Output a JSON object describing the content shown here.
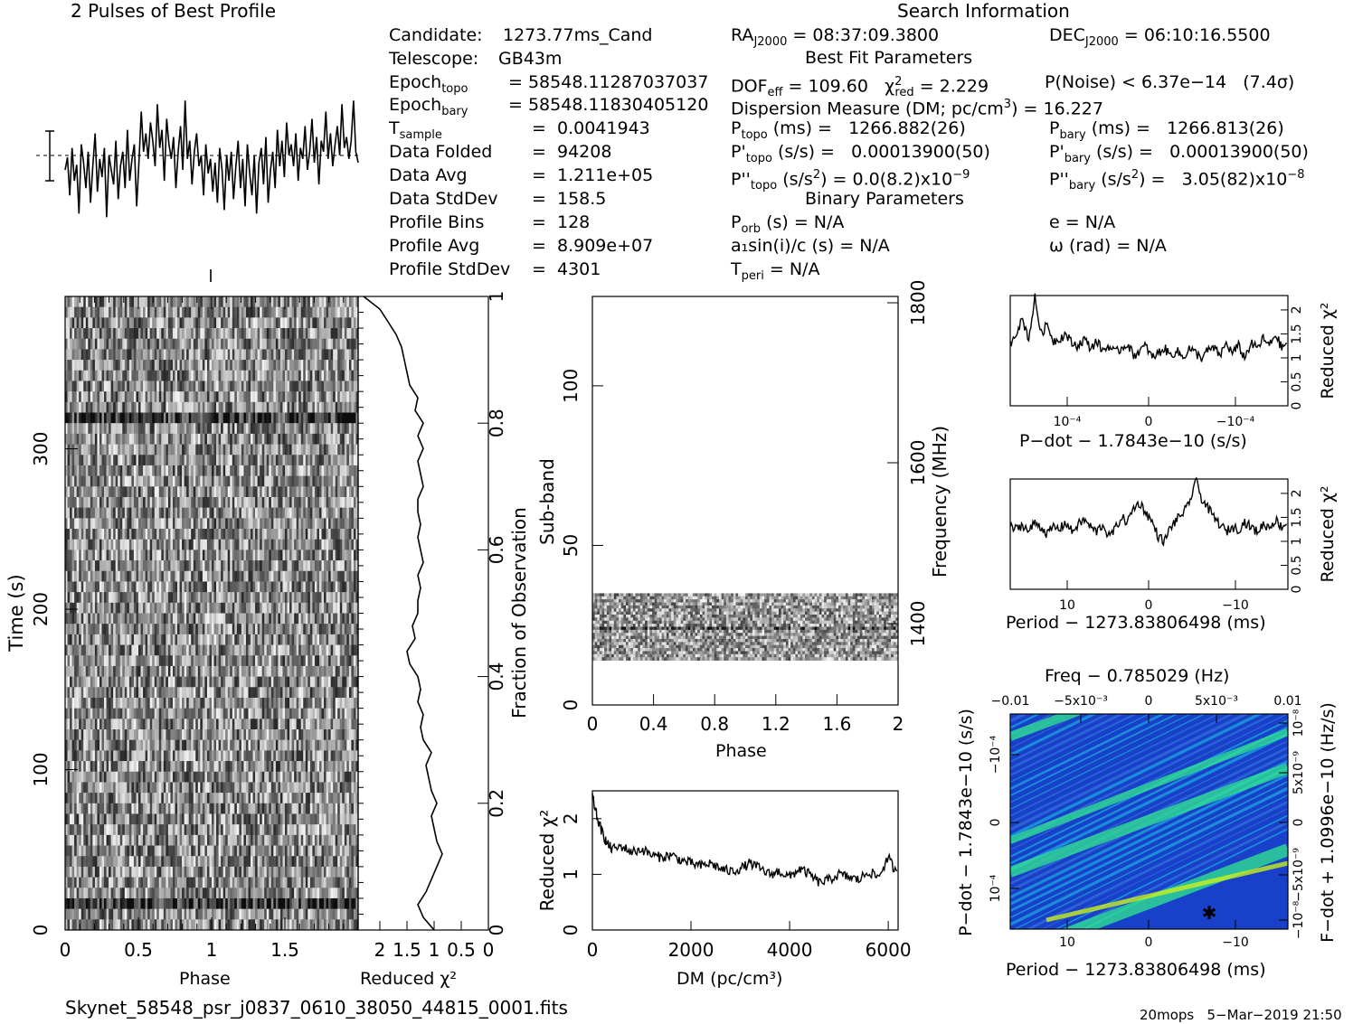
{
  "header": {
    "profile_title": "2 Pulses of Best Profile",
    "search_title": "Search Information"
  },
  "candidate_info": [
    {
      "label": "Candidate:",
      "value": "1273.77ms_Cand"
    },
    {
      "label": "Telescope:",
      "value": "GB43m"
    },
    {
      "label": "Epoch_topo",
      "value": "= 58548.11287037037"
    },
    {
      "label": "Epoch_bary",
      "value": "= 58548.11830405120"
    },
    {
      "label": "T_sample",
      "value": "=  0.0041943"
    },
    {
      "label": "Data Folded",
      "value": "=  94208"
    },
    {
      "label": "Data Avg",
      "value": "=  1.211e+05"
    },
    {
      "label": "Data StdDev",
      "value": "=  158.5"
    },
    {
      "label": "Profile Bins",
      "value": "=  128"
    },
    {
      "label": "Profile Avg",
      "value": "=  8.909e+07"
    },
    {
      "label": "Profile StdDev",
      "value": "=  4301"
    }
  ],
  "search_info": {
    "ra": "RA_J2000 = 08:37:09.3800",
    "dec": "DEC_J2000 = 06:10:16.5500",
    "best_fit_header": "Best Fit Parameters",
    "dof": "DOF_eff = 109.60",
    "chi2": "χ²_red = 2.229",
    "p_noise": "P(Noise) < 6.37e−14   (7.4σ)",
    "dm": "Dispersion Measure (DM; pc/cm³) = 16.227",
    "p_topo": "P_topo (ms) =   1266.882(26)",
    "p_bary": "P_bary (ms) =   1266.813(26)",
    "pd_topo": "P'_topo (s/s) =   0.00013900(50)",
    "pd_bary": "P'_bary (s/s) =   0.00013900(50)",
    "pdd_topo": "P''_topo (s/s²) = 0.0(8.2)x10⁻⁹",
    "pdd_bary": "P''_bary (s/s²) =   3.05(82)x10⁻⁸",
    "binary_header": "Binary Parameters",
    "p_orb": "P_orb (s) = N/A",
    "e": "e = N/A",
    "a1": "a₁sin(i)/c (s) = N/A",
    "omega": "ω (rad) = N/A",
    "t_peri": "T_peri = N/A"
  },
  "footer": {
    "filename": "Skynet_58548_psr_j0837_0610_38050_44815_0001.fits",
    "stamp": "20mops   5−Mar−2019 21:50"
  },
  "chart_data": [
    {
      "id": "profile",
      "type": "line",
      "title": "2 Pulses of Best Profile",
      "xlim": [
        0,
        2
      ],
      "y": [
        0.05,
        0.22,
        -0.3,
        0.35,
        -0.1,
        0.12,
        -0.55,
        0.4,
        0.15,
        -0.2,
        0.3,
        -0.4,
        0.1,
        0.55,
        -0.25,
        0.2,
        -0.05,
        0.35,
        -0.6,
        0.25,
        0.05,
        -0.15,
        0.45,
        -0.35,
        0.1,
        0.3,
        -0.2,
        0.6,
        -0.1,
        0.2,
        0.4,
        -0.45,
        0.15,
        0.85,
        0.3,
        0.55,
        0.2,
        0.7,
        0.45,
        0.1,
        0.95,
        0.35,
        0.6,
        -0.1,
        0.75,
        0.4,
        0.2,
        0.5,
        -0.2,
        0.3,
        0.65,
        0.05,
        1.0,
        0.2,
        0.45,
        -0.15,
        0.3,
        0.55,
        0.1,
        0.25,
        -0.3,
        0.4,
        0.0,
        0.2,
        -0.25,
        0.15,
        -0.4,
        0.35,
        0.05,
        -0.5,
        0.25,
        -0.1,
        0.3,
        -0.35,
        0.1,
        0.45,
        -0.2,
        0.2,
        -0.45,
        0.4,
        0.0,
        -0.3,
        0.25,
        -0.55,
        0.15,
        0.35,
        -0.15,
        0.5,
        -0.4,
        0.05,
        0.3,
        -0.2,
        0.6,
        0.1,
        0.45,
        -0.05,
        0.7,
        0.25,
        0.4,
        0.1,
        0.55,
        -0.1,
        0.35,
        0.2,
        0.65,
        0.05,
        0.3,
        0.75,
        0.15,
        0.5,
        -0.15,
        0.45,
        0.3,
        0.85,
        0.2,
        0.55,
        0.1,
        0.4,
        0.65,
        0.25,
        0.95,
        0.35,
        0.5,
        0.2,
        0.45,
        1.0,
        0.3,
        0.15
      ]
    },
    {
      "id": "time-phase",
      "type": "heatmap",
      "xlabel": "Phase",
      "ylabel": "Time (s)",
      "xlim": [
        0,
        2
      ],
      "ylim": [
        0,
        395
      ],
      "xticks": [
        "0",
        "0.5",
        "1",
        "1.5"
      ],
      "yticks": [
        "0",
        "100",
        "200",
        "300"
      ],
      "right_axis_label": "Fraction of Observation",
      "right_ticks": [
        "0",
        "0.2",
        "0.4",
        "0.6",
        "0.8",
        "1"
      ]
    },
    {
      "id": "time-chi2",
      "type": "line",
      "xlabel": "Reduced χ²",
      "xticks": [
        "2",
        "1.5",
        "1",
        "0.5",
        "0"
      ],
      "xlim": [
        2.4,
        0
      ],
      "y_fraction": [
        0,
        0.02,
        0.04,
        0.06,
        0.08,
        0.1,
        0.12,
        0.14,
        0.16,
        0.18,
        0.2,
        0.22,
        0.24,
        0.26,
        0.28,
        0.3,
        0.32,
        0.34,
        0.36,
        0.38,
        0.4,
        0.42,
        0.44,
        0.46,
        0.48,
        0.5,
        0.52,
        0.54,
        0.56,
        0.58,
        0.6,
        0.62,
        0.64,
        0.66,
        0.68,
        0.7,
        0.72,
        0.74,
        0.76,
        0.78,
        0.8,
        0.82,
        0.84,
        0.86,
        0.88,
        0.9,
        0.92,
        0.94,
        0.96,
        0.98,
        1.0
      ],
      "values": [
        1.0,
        1.2,
        1.3,
        1.15,
        1.05,
        0.95,
        0.85,
        0.95,
        1.0,
        1.05,
        0.95,
        1.05,
        1.1,
        1.15,
        1.05,
        1.2,
        1.25,
        1.2,
        1.3,
        1.25,
        1.3,
        1.45,
        1.5,
        1.35,
        1.4,
        1.3,
        1.3,
        1.25,
        1.3,
        1.2,
        1.25,
        1.3,
        1.25,
        1.3,
        1.3,
        1.2,
        1.25,
        1.3,
        1.2,
        1.3,
        1.2,
        1.35,
        1.3,
        1.45,
        1.5,
        1.55,
        1.6,
        1.7,
        1.85,
        2.0,
        2.3
      ]
    },
    {
      "id": "subband-phase",
      "type": "heatmap",
      "xlabel": "Phase",
      "ylabel": "Sub-band",
      "xlim": [
        0,
        2
      ],
      "ylim": [
        0,
        128
      ],
      "xticks": [
        "0",
        "0.4",
        "0.8",
        "1.2",
        "1.6",
        "2"
      ],
      "yticks": [
        "0",
        "50",
        "100"
      ],
      "right_axis_label": "Frequency (MHz)",
      "right_ticks": [
        "1400",
        "1600",
        "1800"
      ],
      "occupied_subbands": [
        14,
        35
      ]
    },
    {
      "id": "dm-chi2",
      "type": "line",
      "xlabel": "DM (pc/cm³)",
      "ylabel": "Reduced χ²",
      "xlim": [
        0,
        6200
      ],
      "ylim": [
        0,
        2.5
      ],
      "xticks": [
        "0",
        "2000",
        "4000",
        "6000"
      ],
      "yticks": [
        "0",
        "1",
        "2"
      ],
      "x": [
        0,
        100,
        200,
        300,
        400,
        600,
        800,
        1000,
        1200,
        1400,
        1600,
        1800,
        2000,
        2200,
        2400,
        2600,
        2800,
        3000,
        3200,
        3400,
        3600,
        3800,
        4000,
        4200,
        4400,
        4600,
        4800,
        5000,
        5200,
        5400,
        5600,
        5800,
        6000,
        6200
      ],
      "values": [
        2.4,
        2.0,
        1.75,
        1.55,
        1.45,
        1.5,
        1.4,
        1.45,
        1.35,
        1.3,
        1.35,
        1.25,
        1.2,
        1.15,
        1.2,
        1.1,
        1.05,
        1.1,
        1.2,
        1.1,
        1.0,
        1.05,
        0.95,
        1.1,
        1.0,
        0.85,
        0.9,
        1.0,
        0.95,
        0.9,
        1.05,
        0.95,
        1.3,
        0.95
      ]
    },
    {
      "id": "pdot-chi2",
      "type": "line",
      "xlabel": "P−dot − 1.7843e−10 (s/s)",
      "ylabel": "Reduced χ²",
      "xticks": [
        "10⁻⁴",
        "0",
        "−10⁻⁴"
      ],
      "yticks": [
        "0",
        "0.5",
        "1",
        "1.5",
        "2"
      ],
      "ylim": [
        0,
        2.3
      ],
      "values": [
        1.3,
        1.55,
        1.8,
        1.4,
        2.25,
        1.5,
        1.7,
        1.35,
        1.4,
        1.5,
        1.3,
        1.25,
        1.4,
        1.2,
        1.35,
        1.15,
        1.25,
        1.1,
        1.2,
        1.3,
        1.05,
        1.15,
        1.25,
        1.0,
        1.1,
        1.2,
        1.05,
        1.15,
        1.0,
        1.2,
        1.1,
        1.0,
        1.15,
        1.2,
        1.05,
        1.3,
        1.1,
        1.25,
        1.0,
        1.3,
        1.2,
        1.4,
        1.25,
        1.5,
        1.2,
        1.35
      ]
    },
    {
      "id": "period-chi2",
      "type": "line",
      "xlabel": "Period − 1273.83806498 (ms)",
      "ylabel": "Reduced χ²",
      "xticks": [
        "10",
        "0",
        "−10"
      ],
      "yticks": [
        "0",
        "0.5",
        "1",
        "1.5",
        "2"
      ],
      "ylim": [
        0,
        2.3
      ],
      "values": [
        1.3,
        1.25,
        1.35,
        1.2,
        1.4,
        1.3,
        1.15,
        1.3,
        1.25,
        1.4,
        1.2,
        1.35,
        1.45,
        1.3,
        1.2,
        1.35,
        1.1,
        1.25,
        1.5,
        1.4,
        1.7,
        1.8,
        1.6,
        1.4,
        1.1,
        1.0,
        1.3,
        1.45,
        1.6,
        1.75,
        2.3,
        1.9,
        1.7,
        1.5,
        1.35,
        1.2,
        1.3,
        1.25,
        1.4,
        1.3,
        1.2,
        1.35,
        1.3,
        1.45,
        1.3,
        1.4
      ]
    },
    {
      "id": "p-pdot-plane",
      "type": "heatmap",
      "title": "Freq − 0.785029 (Hz)",
      "xlabel": "Period − 1273.83806498 (ms)",
      "ylabel": "P−dot − 1.7843e−10 (s/s)",
      "right_axis_label": "F−dot + 1.0996e−10 (Hz/s)",
      "xticks": [
        "10",
        "0",
        "−10"
      ],
      "top_ticks": [
        "−0.01",
        "−5x10⁻³",
        "0",
        "5x10⁻³",
        "0.01"
      ],
      "yticks": [
        "10⁻⁴",
        "0",
        "−10⁻⁴"
      ],
      "right_ticks": [
        "−10⁻⁸",
        "−5x10⁻⁹",
        "0",
        "5x10⁻⁹",
        "10⁻⁸"
      ],
      "colors": {
        "low": "#1840c8",
        "mid": "#1aa0e0",
        "high": "#30e890",
        "peak": "#c8f020"
      }
    }
  ]
}
